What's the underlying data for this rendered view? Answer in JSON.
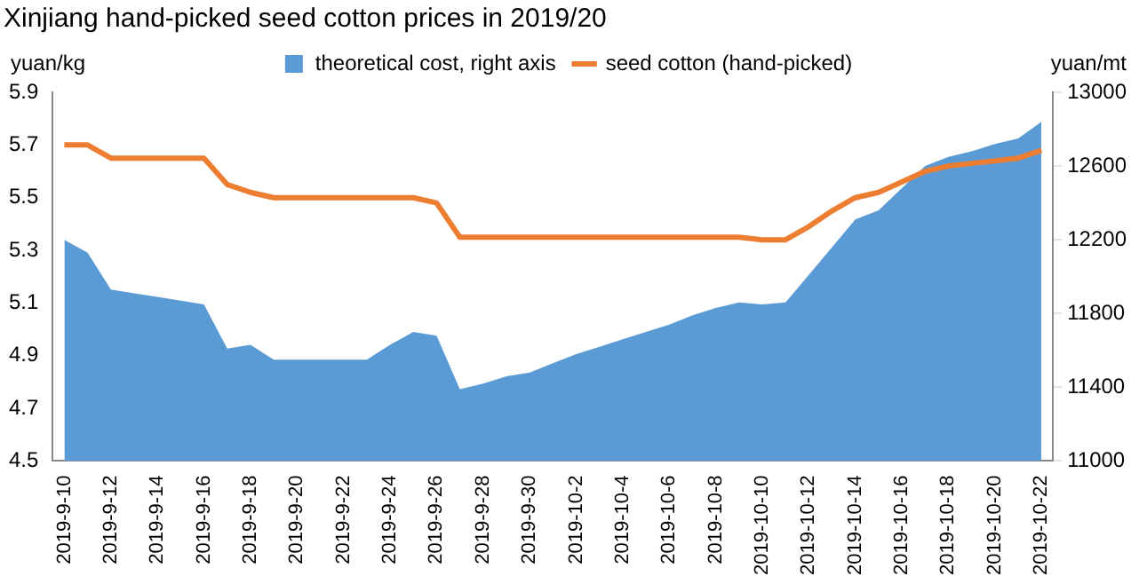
{
  "chart_data": {
    "type": "line",
    "title": "Xinjiang hand-picked seed cotton prices in 2019/20",
    "ylabel": "yuan/kg",
    "y2label": "yuan/mt",
    "categories": [
      "2019-9-10",
      null,
      "2019-9-12",
      null,
      "2019-9-14",
      null,
      "2019-9-16",
      null,
      "2019-9-18",
      null,
      "2019-9-20",
      null,
      "2019-9-22",
      null,
      "2019-9-24",
      null,
      "2019-9-26",
      null,
      "2019-9-28",
      null,
      "2019-9-30",
      null,
      "2019-10-2",
      null,
      "2019-10-4",
      null,
      "2019-10-6",
      null,
      "2019-10-8",
      null,
      "2019-10-10",
      null,
      "2019-10-12",
      null,
      "2019-10-14",
      null,
      "2019-10-16",
      null,
      "2019-10-18",
      null,
      "2019-10-20",
      null,
      "2019-10-22"
    ],
    "series": [
      {
        "name": "theoretical cost, right axis",
        "type": "area",
        "axis": "y2",
        "color": "#5b9bd5",
        "values": [
          12200,
          12130,
          11930,
          11910,
          11890,
          11870,
          11850,
          11610,
          11630,
          11550,
          11550,
          11550,
          11550,
          11550,
          11630,
          11700,
          11680,
          11390,
          11420,
          11460,
          11480,
          11530,
          11580,
          11620,
          11660,
          11700,
          11740,
          11790,
          11830,
          11860,
          11850,
          11860,
          12010,
          12160,
          12310,
          12360,
          12480,
          12600,
          12650,
          12680,
          12720,
          12750,
          12840
        ]
      },
      {
        "name": "seed cotton (hand-picked)",
        "color": "#ed7d31",
        "values": [
          5.7,
          5.7,
          5.65,
          5.65,
          5.65,
          5.65,
          5.65,
          5.55,
          5.52,
          5.5,
          5.5,
          5.5,
          5.5,
          5.5,
          5.5,
          5.5,
          5.48,
          5.35,
          5.35,
          5.35,
          5.35,
          5.35,
          5.35,
          5.35,
          5.35,
          5.35,
          5.35,
          5.35,
          5.35,
          5.35,
          5.34,
          5.34,
          5.39,
          5.45,
          5.5,
          5.52,
          5.56,
          5.6,
          5.62,
          5.63,
          5.64,
          5.65,
          5.68
        ]
      }
    ],
    "ylim": [
      4.5,
      5.9
    ],
    "yticks": [
      4.5,
      4.7,
      4.9,
      5.1,
      5.3,
      5.5,
      5.7,
      5.9
    ],
    "y2lim": [
      11000,
      13000
    ],
    "y2ticks": [
      11000,
      11400,
      11800,
      12200,
      12600,
      13000
    ],
    "grid": false,
    "legend": "top",
    "marker": "none",
    "line_style": "solid"
  }
}
